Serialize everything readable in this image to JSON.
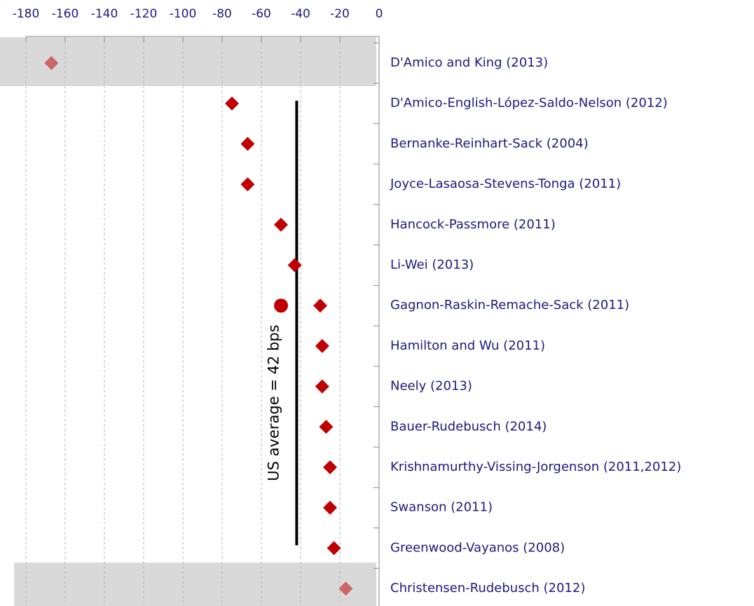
{
  "chart_data": {
    "type": "dot",
    "categories": [
      "D'Amico and King (2013)",
      "D'Amico-English-López-Saldo-Nelson  (2012)",
      "Bernanke-Reinhart-Sack (2004)",
      "Joyce-Lasaosa-Stevens-Tonga (2011)",
      "Hancock-Passmore (2011)",
      "Li-Wei (2013)",
      "Gagnon-Raskin-Remache-Sack (2011)",
      "Hamilton and Wu (2011)",
      "Neely (2013)",
      "Bauer-Rudebusch (2014)",
      "Krishnamurthy-Vissing-Jorgenson (2011,2012)",
      "Swanson (2011)",
      "Greenwood-Vayanos (2008)",
      "Christensen-Rudebusch (2012)"
    ],
    "series": [
      {
        "marker": "diamond",
        "color": "#c00000",
        "values": [
          -167,
          -75,
          -67,
          -67,
          -50,
          -43,
          -30,
          -29,
          -29,
          -27,
          -25,
          -25,
          -23,
          -17
        ]
      },
      {
        "marker": "circle",
        "color": "#c00000",
        "values": [
          null,
          null,
          null,
          null,
          null,
          null,
          -50,
          null,
          null,
          null,
          null,
          null,
          null,
          null
        ]
      }
    ],
    "highlight_rows": [
      0,
      13
    ],
    "highlight_color": "#d9d9d9",
    "highlight_marker_color": "#cd6666",
    "xlim": [
      -180,
      0
    ],
    "xticks": [
      -180,
      -160,
      -140,
      -120,
      -100,
      -80,
      -60,
      -40,
      -20,
      0
    ],
    "grid": true,
    "reference_line": {
      "value": -42,
      "from_row": 1,
      "to_row": 12,
      "color": "#000",
      "label": "US average = 42 bps"
    }
  }
}
